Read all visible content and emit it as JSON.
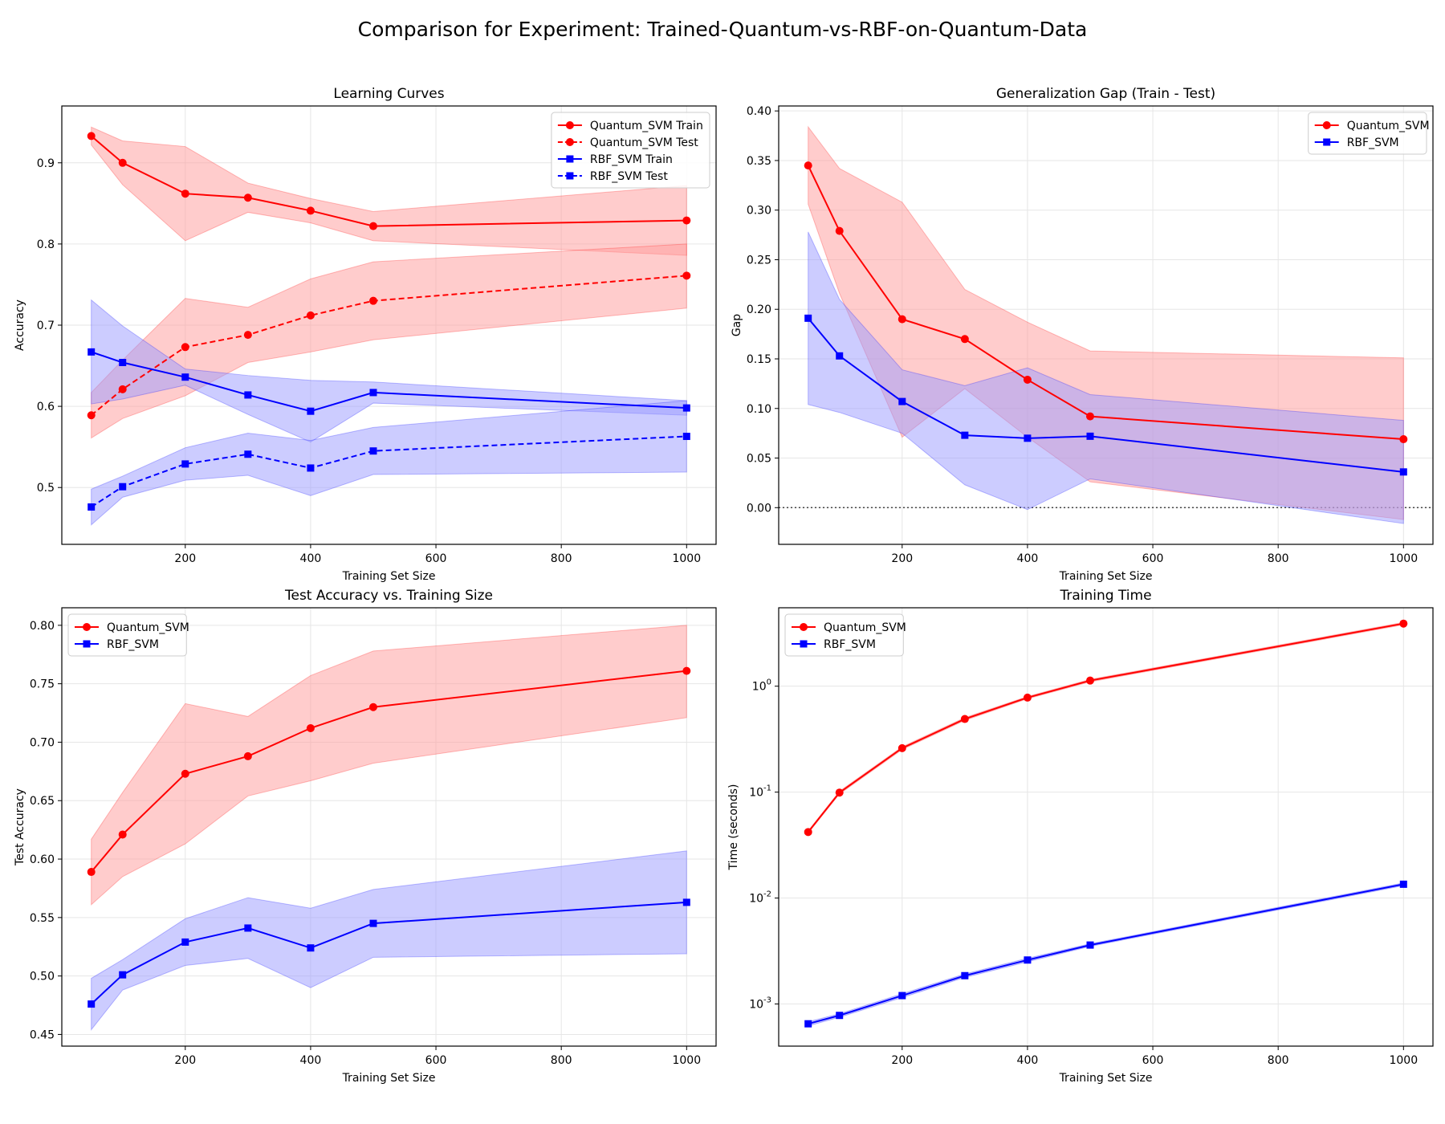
{
  "suptitle": "Comparison for Experiment: Trained-Quantum-vs-RBF-on-Quantum-Data",
  "colors": {
    "quantum": "#ff0000",
    "rbf": "#0000ff",
    "quantum_fill": "#ff9999",
    "rbf_fill": "#9999ff"
  },
  "chart_data": [
    {
      "id": "learning",
      "type": "line",
      "title": "Learning Curves",
      "xlabel": "Training Set Size",
      "ylabel": "Accuracy",
      "xlim": [
        3,
        1047
      ],
      "ylim": [
        0.43,
        0.97
      ],
      "xticks": [
        200,
        400,
        600,
        800,
        1000
      ],
      "yticks": [
        0.5,
        0.6,
        0.7,
        0.8,
        0.9
      ],
      "ytick_labels": [
        "0.5",
        "0.6",
        "0.7",
        "0.8",
        "0.9"
      ],
      "yscale": "linear",
      "grid": true,
      "legend": "top-right",
      "x": [
        50,
        100,
        200,
        300,
        400,
        500,
        1000
      ],
      "series": [
        {
          "name": "Quantum_SVM Train",
          "color": "#ff0000",
          "marker": "circle",
          "dash": false,
          "values": [
            0.933,
            0.9,
            0.862,
            0.857,
            0.841,
            0.822,
            0.829
          ],
          "lower": [
            0.922,
            0.873,
            0.804,
            0.839,
            0.826,
            0.804,
            0.786
          ],
          "upper": [
            0.944,
            0.927,
            0.92,
            0.875,
            0.856,
            0.84,
            0.872
          ]
        },
        {
          "name": "Quantum_SVM Test",
          "color": "#ff0000",
          "marker": "circle",
          "dash": true,
          "values": [
            0.589,
            0.621,
            0.673,
            0.688,
            0.712,
            0.73,
            0.761
          ],
          "lower": [
            0.561,
            0.585,
            0.613,
            0.654,
            0.667,
            0.682,
            0.721
          ],
          "upper": [
            0.617,
            0.657,
            0.733,
            0.722,
            0.757,
            0.778,
            0.8
          ]
        },
        {
          "name": "RBF_SVM Train",
          "color": "#0000ff",
          "marker": "square",
          "dash": false,
          "values": [
            0.667,
            0.654,
            0.636,
            0.614,
            0.594,
            0.617,
            0.598
          ],
          "lower": [
            0.603,
            0.609,
            0.626,
            0.59,
            0.556,
            0.604,
            0.589
          ],
          "upper": [
            0.731,
            0.699,
            0.646,
            0.638,
            0.632,
            0.63,
            0.607
          ]
        },
        {
          "name": "RBF_SVM Test",
          "color": "#0000ff",
          "marker": "square",
          "dash": true,
          "values": [
            0.476,
            0.501,
            0.529,
            0.541,
            0.524,
            0.545,
            0.563
          ],
          "lower": [
            0.454,
            0.488,
            0.509,
            0.515,
            0.49,
            0.516,
            0.519
          ],
          "upper": [
            0.498,
            0.514,
            0.549,
            0.567,
            0.558,
            0.574,
            0.607
          ]
        }
      ]
    },
    {
      "id": "gap",
      "type": "line",
      "title": "Generalization Gap (Train - Test)",
      "xlabel": "Training Set Size",
      "ylabel": "Gap",
      "xlim": [
        3,
        1047
      ],
      "ylim": [
        -0.037,
        0.405
      ],
      "xticks": [
        200,
        400,
        600,
        800,
        1000
      ],
      "yticks": [
        0.0,
        0.05,
        0.1,
        0.15,
        0.2,
        0.25,
        0.3,
        0.35,
        0.4
      ],
      "ytick_labels": [
        "0.00",
        "0.05",
        "0.10",
        "0.15",
        "0.20",
        "0.25",
        "0.30",
        "0.35",
        "0.40"
      ],
      "yscale": "linear",
      "grid": true,
      "legend": "top-right",
      "reference_line": 0,
      "x": [
        50,
        100,
        200,
        300,
        400,
        500,
        1000
      ],
      "series": [
        {
          "name": "Quantum_SVM",
          "color": "#ff0000",
          "marker": "circle",
          "dash": false,
          "values": [
            0.345,
            0.279,
            0.19,
            0.17,
            0.129,
            0.092,
            0.069
          ],
          "lower": [
            0.306,
            0.216,
            0.071,
            0.12,
            0.071,
            0.026,
            -0.012
          ],
          "upper": [
            0.384,
            0.342,
            0.308,
            0.22,
            0.187,
            0.158,
            0.151
          ]
        },
        {
          "name": "RBF_SVM",
          "color": "#0000ff",
          "marker": "square",
          "dash": false,
          "values": [
            0.191,
            0.153,
            0.107,
            0.073,
            0.07,
            0.072,
            0.036
          ],
          "lower": [
            0.104,
            0.096,
            0.075,
            0.023,
            -0.002,
            0.029,
            -0.016
          ],
          "upper": [
            0.278,
            0.21,
            0.139,
            0.123,
            0.141,
            0.114,
            0.088
          ]
        }
      ]
    },
    {
      "id": "testacc",
      "type": "line",
      "title": "Test Accuracy vs. Training Size",
      "xlabel": "Training Set Size",
      "ylabel": "Test Accuracy",
      "xlim": [
        3,
        1047
      ],
      "ylim": [
        0.44,
        0.815
      ],
      "xticks": [
        200,
        400,
        600,
        800,
        1000
      ],
      "yticks": [
        0.45,
        0.5,
        0.55,
        0.6,
        0.65,
        0.7,
        0.75,
        0.8
      ],
      "ytick_labels": [
        "0.45",
        "0.50",
        "0.55",
        "0.60",
        "0.65",
        "0.70",
        "0.75",
        "0.80"
      ],
      "yscale": "linear",
      "grid": true,
      "legend": "top-left",
      "x": [
        50,
        100,
        200,
        300,
        400,
        500,
        1000
      ],
      "series": [
        {
          "name": "Quantum_SVM",
          "color": "#ff0000",
          "marker": "circle",
          "dash": false,
          "values": [
            0.589,
            0.621,
            0.673,
            0.688,
            0.712,
            0.73,
            0.761
          ],
          "lower": [
            0.561,
            0.585,
            0.613,
            0.654,
            0.667,
            0.682,
            0.721
          ],
          "upper": [
            0.617,
            0.657,
            0.733,
            0.722,
            0.757,
            0.778,
            0.8
          ]
        },
        {
          "name": "RBF_SVM",
          "color": "#0000ff",
          "marker": "square",
          "dash": false,
          "values": [
            0.476,
            0.501,
            0.529,
            0.541,
            0.524,
            0.545,
            0.563
          ],
          "lower": [
            0.454,
            0.488,
            0.509,
            0.515,
            0.49,
            0.516,
            0.519
          ],
          "upper": [
            0.498,
            0.514,
            0.549,
            0.567,
            0.558,
            0.574,
            0.607
          ]
        }
      ]
    },
    {
      "id": "time",
      "type": "line",
      "title": "Training Time",
      "xlabel": "Training Set Size",
      "ylabel": "Time (seconds)",
      "xlim": [
        3,
        1047
      ],
      "ylim": [
        0.0004,
        5.5
      ],
      "xticks": [
        200,
        400,
        600,
        800,
        1000
      ],
      "yticks": [
        0.001,
        0.01,
        0.1,
        1
      ],
      "ytick_labels": [
        "10^-3",
        "10^-2",
        "10^-1",
        "10^0"
      ],
      "yscale": "log",
      "grid": true,
      "legend": "top-left",
      "x": [
        50,
        100,
        200,
        300,
        400,
        500,
        1000
      ],
      "series": [
        {
          "name": "Quantum_SVM",
          "color": "#ff0000",
          "marker": "circle",
          "dash": false,
          "values": [
            0.042,
            0.099,
            0.26,
            0.49,
            0.78,
            1.13,
            3.9
          ],
          "lower": [
            0.041,
            0.096,
            0.252,
            0.475,
            0.76,
            1.1,
            3.8
          ],
          "upper": [
            0.043,
            0.102,
            0.268,
            0.505,
            0.8,
            1.16,
            4.0
          ]
        },
        {
          "name": "RBF_SVM",
          "color": "#0000ff",
          "marker": "square",
          "dash": false,
          "values": [
            0.00065,
            0.00078,
            0.0012,
            0.00185,
            0.0026,
            0.0036,
            0.0135
          ],
          "lower": [
            0.00062,
            0.00075,
            0.00115,
            0.00178,
            0.0025,
            0.0035,
            0.0131
          ],
          "upper": [
            0.00068,
            0.00081,
            0.00125,
            0.00192,
            0.0027,
            0.0037,
            0.0139
          ]
        }
      ]
    }
  ]
}
